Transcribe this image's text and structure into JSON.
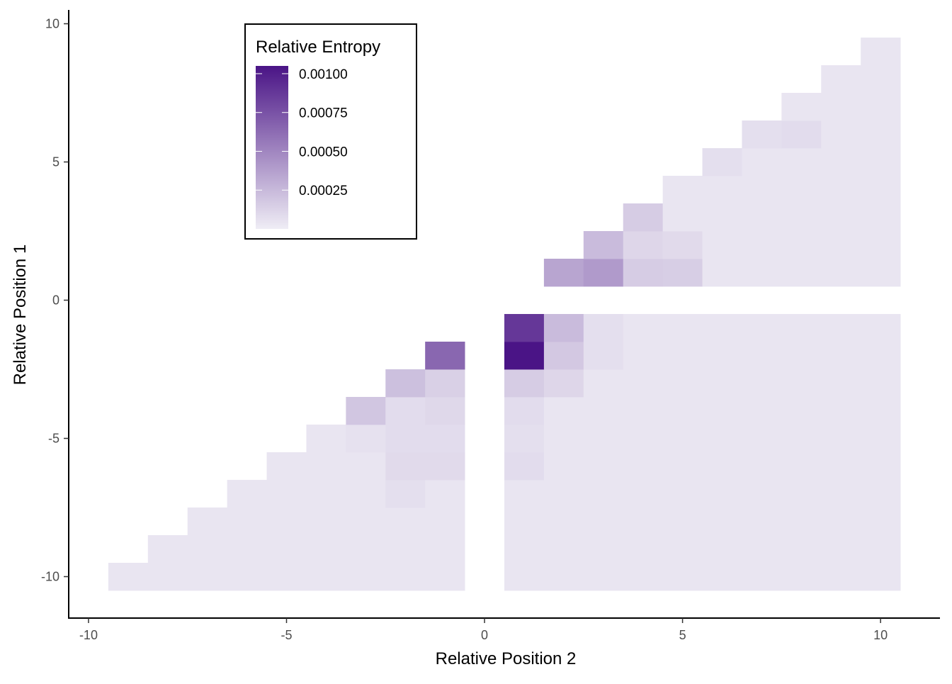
{
  "chart_data": {
    "type": "heatmap",
    "xlabel": "Relative Position 2",
    "ylabel": "Relative Position 1",
    "xlim": [
      -10.5,
      11.5
    ],
    "ylim": [
      -11.5,
      10.5
    ],
    "x_ticks": [
      -10,
      -5,
      0,
      5,
      10
    ],
    "y_ticks": [
      -10,
      -5,
      0,
      5,
      10
    ],
    "x_tick_labels": [
      "-10",
      "-5",
      "0",
      "5",
      "10"
    ],
    "y_tick_labels": [
      "-10",
      "-5",
      "0",
      "5",
      "10"
    ],
    "grid": false,
    "legend": {
      "title": "Relative Entropy",
      "placement": "top-left",
      "min": 0,
      "max": 0.00105,
      "breaks": [
        0.001,
        0.00075,
        0.0005,
        0.00025
      ],
      "labels": [
        "0.00100",
        "0.00075",
        "0.00050",
        "0.00025"
      ]
    },
    "color_low": "#efedf5",
    "color_high": "#4a1486",
    "cells": {
      "lower_triangle_default": 4e-05,
      "lower_right_default": 4e-05,
      "upper_triangle_default": 4e-05,
      "overrides": [
        {
          "x": -1,
          "y": -2,
          "value": 0.00065
        },
        {
          "x": -2,
          "y": -3,
          "value": 0.00022
        },
        {
          "x": -1,
          "y": -3,
          "value": 0.00014
        },
        {
          "x": -3,
          "y": -4,
          "value": 0.00019
        },
        {
          "x": -2,
          "y": -4,
          "value": 8e-05
        },
        {
          "x": -1,
          "y": -4,
          "value": 0.0001
        },
        {
          "x": -3,
          "y": -5,
          "value": 6e-05
        },
        {
          "x": -2,
          "y": -5,
          "value": 8e-05
        },
        {
          "x": -1,
          "y": -5,
          "value": 8e-05
        },
        {
          "x": -2,
          "y": -6,
          "value": 9e-05
        },
        {
          "x": -1,
          "y": -6,
          "value": 9e-05
        },
        {
          "x": -2,
          "y": -7,
          "value": 7e-05
        },
        {
          "x": 1,
          "y": -1,
          "value": 0.00088
        },
        {
          "x": 1,
          "y": -2,
          "value": 0.00105
        },
        {
          "x": 2,
          "y": -1,
          "value": 0.00024
        },
        {
          "x": 2,
          "y": -2,
          "value": 0.00018
        },
        {
          "x": 1,
          "y": -3,
          "value": 0.00016
        },
        {
          "x": 2,
          "y": -3,
          "value": 0.00011
        },
        {
          "x": 1,
          "y": -4,
          "value": 8e-05
        },
        {
          "x": 1,
          "y": -5,
          "value": 7e-05
        },
        {
          "x": 1,
          "y": -6,
          "value": 8e-05
        },
        {
          "x": 3,
          "y": -1,
          "value": 7e-05
        },
        {
          "x": 3,
          "y": -2,
          "value": 7e-05
        },
        {
          "x": 2,
          "y": 1,
          "value": 0.00035
        },
        {
          "x": 3,
          "y": 1,
          "value": 0.0004
        },
        {
          "x": 3,
          "y": 2,
          "value": 0.00024
        },
        {
          "x": 4,
          "y": 1,
          "value": 0.00016
        },
        {
          "x": 5,
          "y": 1,
          "value": 0.00015
        },
        {
          "x": 4,
          "y": 2,
          "value": 0.00011
        },
        {
          "x": 5,
          "y": 2,
          "value": 9e-05
        },
        {
          "x": 4,
          "y": 3,
          "value": 0.00016
        },
        {
          "x": 7,
          "y": 6,
          "value": 7e-05
        },
        {
          "x": 8,
          "y": 6,
          "value": 8e-05
        },
        {
          "x": 6,
          "y": 5,
          "value": 7e-05
        }
      ]
    }
  }
}
